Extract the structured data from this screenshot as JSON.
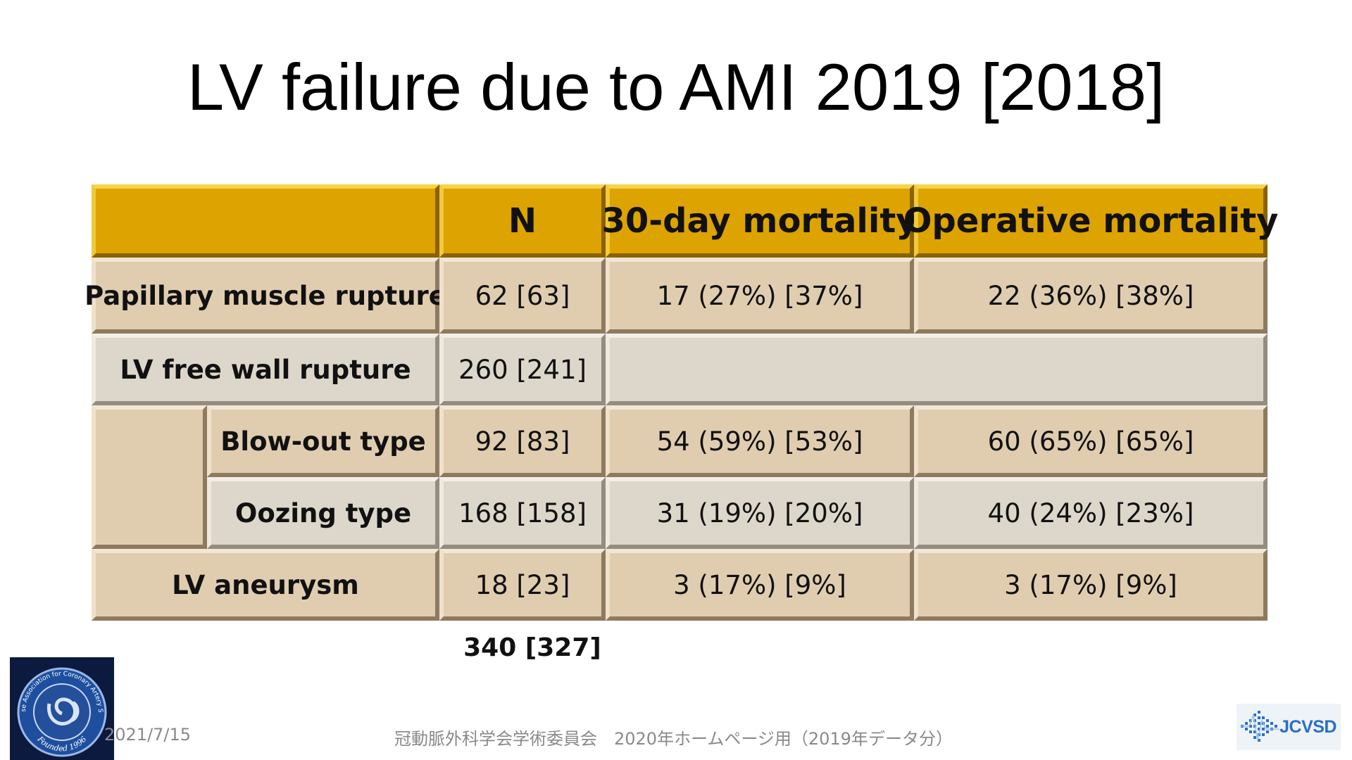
{
  "slide": {
    "title": "LV failure due to AMI 2019 [2018]"
  },
  "table": {
    "headers": [
      "",
      "N",
      "30-day mortality",
      "Operative mortality"
    ],
    "rows": [
      {
        "label": "Papillary muscle rupture",
        "n": "62 [63]",
        "d30": "17 (27%) [37%]",
        "op": "22 (36%) [38%]"
      },
      {
        "label": "LV free wall rupture",
        "n": "260 [241]",
        "d30": "",
        "op": ""
      },
      {
        "label": "Blow-out type",
        "n": "92 [83]",
        "d30": "54 (59%) [53%]",
        "op": "60 (65%) [65%]"
      },
      {
        "label": "Oozing type",
        "n": "168 [158]",
        "d30": "31 (19%) [20%]",
        "op": "40 (24%) [23%]"
      },
      {
        "label": "LV aneurysm",
        "n": "18 [23]",
        "d30": "3 (17%) [9%]",
        "op": "3 (17%) [9%]"
      }
    ],
    "total": "340 [327]"
  },
  "footer": {
    "date": "2021/7/15",
    "center": "冠動脈外科学会学術委員会　2020年ホームページ用（2019年データ分）"
  },
  "logos": {
    "left": {
      "text_top": "Japanese Association for Coronary Artery Surgery",
      "text_bottom": "Founded 1996"
    },
    "right": {
      "text": "JCVSD"
    }
  },
  "colors": {
    "header_gold": "#dda300",
    "row_tan": "#e0cdb0",
    "row_light": "#ddd6ca",
    "logo_blue": "#2a6ec8"
  }
}
